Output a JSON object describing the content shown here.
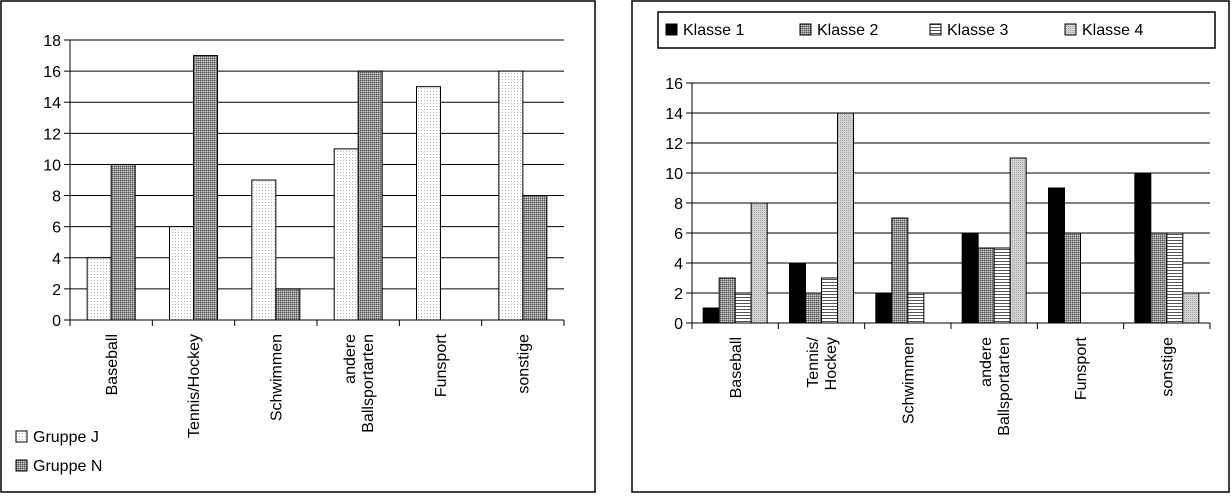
{
  "chart_data": [
    {
      "type": "bar",
      "categories": [
        "Baseball",
        "Tennis/Hockey",
        "Schwimmen",
        "andere Ballsportarten",
        "Funsport",
        "sonstige"
      ],
      "category_labels": [
        [
          "Baseball"
        ],
        [
          "Tennis/Hockey"
        ],
        [
          "Schwimmen"
        ],
        [
          "andere",
          "Ballsportarten"
        ],
        [
          "Funsport"
        ],
        [
          "sonstige"
        ]
      ],
      "series": [
        {
          "name": "Gruppe J",
          "values": [
            4,
            6,
            9,
            11,
            15,
            16
          ],
          "pattern": "dots",
          "color": "#f2f2f2"
        },
        {
          "name": "Gruppe N",
          "values": [
            10,
            17,
            2,
            16,
            0,
            8
          ],
          "pattern": "dense",
          "color": "#a6a6a6"
        }
      ],
      "ylim": [
        0,
        18
      ],
      "yticks": [
        0,
        2,
        4,
        6,
        8,
        10,
        12,
        14,
        16,
        18
      ],
      "grid": true,
      "legend_position": "bottom-left"
    },
    {
      "type": "bar",
      "categories": [
        "Baseball",
        "Tennis/Hockey",
        "Schwimmen",
        "andere Ballsportarten",
        "Funsport",
        "sonstige"
      ],
      "category_labels": [
        [
          "Baseball"
        ],
        [
          "Tennis/",
          "Hockey"
        ],
        [
          "Schwimmen"
        ],
        [
          "andere",
          "Ballsportarten"
        ],
        [
          "Funsport"
        ],
        [
          "sonstige"
        ]
      ],
      "series": [
        {
          "name": "Klasse 1",
          "values": [
            1,
            4,
            2,
            6,
            9,
            10
          ],
          "pattern": "solid",
          "color": "#000000"
        },
        {
          "name": "Klasse 2",
          "values": [
            3,
            2,
            7,
            5,
            6,
            6
          ],
          "pattern": "dense",
          "color": "#808080"
        },
        {
          "name": "Klasse 3",
          "values": [
            2,
            3,
            2,
            5,
            0,
            6
          ],
          "pattern": "hlines",
          "color": "#ffffff"
        },
        {
          "name": "Klasse 4",
          "values": [
            8,
            14,
            0,
            11,
            0,
            2
          ],
          "pattern": "light",
          "color": "#c8c8c8"
        }
      ],
      "ylim": [
        0,
        16
      ],
      "yticks": [
        0,
        2,
        4,
        6,
        8,
        10,
        12,
        14,
        16
      ],
      "grid": true,
      "legend_position": "top"
    }
  ]
}
